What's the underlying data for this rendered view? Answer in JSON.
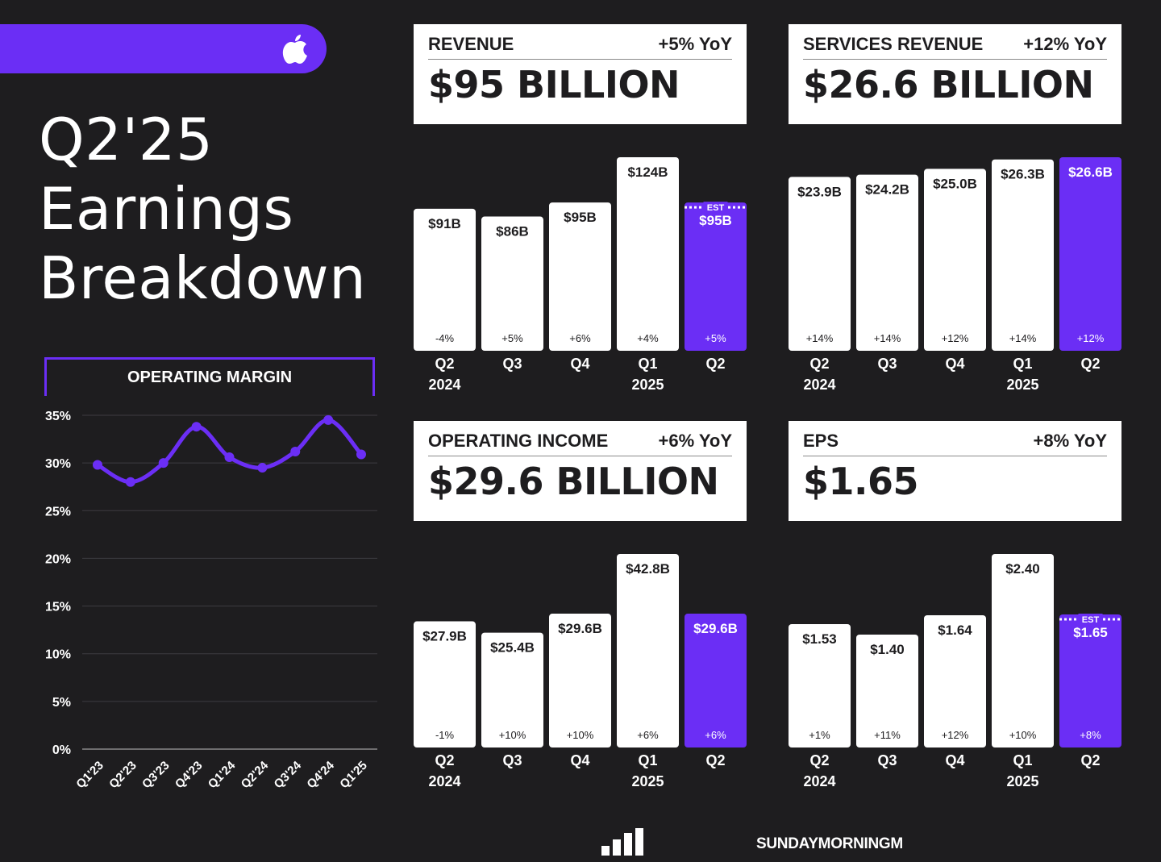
{
  "colors": {
    "background": "#1e1d1f",
    "accent": "#6b2ef5",
    "card": "#ffffff",
    "bar": "#ffffff",
    "ink": "#1e1d1f"
  },
  "header": {
    "logo_icon": "apple-logo-icon"
  },
  "title": {
    "line1": "Q2'25",
    "line2": "Earnings",
    "line3": "Breakdown"
  },
  "footer": {
    "logo_icon": "bar-steps-logo-icon",
    "brand": "SUNDAYMORNINGM"
  },
  "chart_data": [
    {
      "id": "operating_margin",
      "type": "line",
      "title": "OPERATING MARGIN",
      "categories": [
        "Q1'23",
        "Q2'23",
        "Q3'23",
        "Q4'23",
        "Q1'24",
        "Q2'24",
        "Q3'24",
        "Q4'24",
        "Q1'25"
      ],
      "values": [
        29.8,
        28.0,
        30.0,
        33.8,
        30.6,
        29.5,
        31.2,
        34.5,
        30.9
      ],
      "y_ticks": [
        "0%",
        "5%",
        "10%",
        "15%",
        "20%",
        "25%",
        "30%",
        "35%"
      ],
      "ylim": [
        0,
        35
      ],
      "grid": true
    },
    {
      "id": "revenue",
      "type": "bar",
      "title": "REVENUE",
      "yoy": "+5% YoY",
      "headline": "$95 BILLION",
      "categories": [
        "Q2",
        "Q3",
        "Q4",
        "Q1",
        "Q2"
      ],
      "years": [
        "2024",
        "",
        "",
        "2025",
        ""
      ],
      "values": [
        91,
        86,
        95,
        124,
        95
      ],
      "labels": [
        "$91B",
        "$86B",
        "$95B",
        "$124B",
        "$95B"
      ],
      "growth": [
        "-4%",
        "+5%",
        "+6%",
        "+4%",
        "+5%"
      ],
      "estimate_index": 4,
      "estimate_label": "EST",
      "ylim": [
        0,
        124
      ]
    },
    {
      "id": "services_revenue",
      "type": "bar",
      "title": "SERVICES REVENUE",
      "yoy": "+12% YoY",
      "headline": "$26.6 BILLION",
      "categories": [
        "Q2",
        "Q3",
        "Q4",
        "Q1",
        "Q2"
      ],
      "years": [
        "2024",
        "",
        "",
        "2025",
        ""
      ],
      "values": [
        23.9,
        24.2,
        25.0,
        26.3,
        26.6
      ],
      "labels": [
        "$23.9B",
        "$24.2B",
        "$25.0B",
        "$26.3B",
        "$26.6B"
      ],
      "growth": [
        "+14%",
        "+14%",
        "+12%",
        "+14%",
        "+12%"
      ],
      "estimate_index": null,
      "estimate_label": "",
      "ylim": [
        0,
        26.6
      ]
    },
    {
      "id": "operating_income",
      "type": "bar",
      "title": "OPERATING INCOME",
      "yoy": "+6% YoY",
      "headline": "$29.6 BILLION",
      "categories": [
        "Q2",
        "Q3",
        "Q4",
        "Q1",
        "Q2"
      ],
      "years": [
        "2024",
        "",
        "",
        "2025",
        ""
      ],
      "values": [
        27.9,
        25.4,
        29.6,
        42.8,
        29.6
      ],
      "labels": [
        "$27.9B",
        "$25.4B",
        "$29.6B",
        "$42.8B",
        "$29.6B"
      ],
      "growth": [
        "-1%",
        "+10%",
        "+10%",
        "+6%",
        "+6%"
      ],
      "estimate_index": null,
      "estimate_label": "",
      "ylim": [
        0,
        42.8
      ]
    },
    {
      "id": "eps",
      "type": "bar",
      "title": "EPS",
      "yoy": "+8% YoY",
      "headline": "$1.65",
      "categories": [
        "Q2",
        "Q3",
        "Q4",
        "Q1",
        "Q2"
      ],
      "years": [
        "2024",
        "",
        "",
        "2025",
        ""
      ],
      "values": [
        1.53,
        1.4,
        1.64,
        2.4,
        1.65
      ],
      "labels": [
        "$1.53",
        "$1.40",
        "$1.64",
        "$2.40",
        "$1.65"
      ],
      "growth": [
        "+1%",
        "+11%",
        "+12%",
        "+10%",
        "+8%"
      ],
      "estimate_index": 4,
      "estimate_label": "EST",
      "ylim": [
        0,
        2.4
      ]
    }
  ]
}
